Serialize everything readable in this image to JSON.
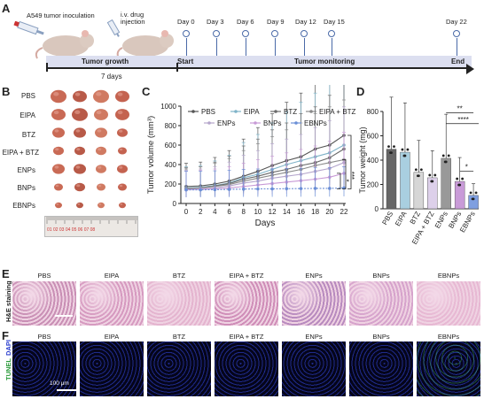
{
  "panels": {
    "A": "A",
    "B": "B",
    "C": "C",
    "D": "D",
    "E": "E",
    "F": "F"
  },
  "timeline": {
    "inoculation": "A549 tumor inoculation",
    "injection": "i.v. drug\ninjection",
    "days": [
      "Day 0",
      "Day 3",
      "Day 6",
      "Day 9",
      "Day 12",
      "Day 15",
      "Day 22"
    ],
    "growth": "Tumor growth",
    "start": "Start",
    "monitoring": "Tumor monitoring",
    "end": "End",
    "duration": "7 days"
  },
  "groups": [
    "PBS",
    "EIPA",
    "BTZ",
    "EIPA + BTZ",
    "ENPs",
    "BNPs",
    "EBNPs"
  ],
  "ruler_marks": "01  02  03  04  05  06  07  08",
  "stain_labels": {
    "he": "H&E staining",
    "tunel": "TUNEL",
    "dapi": "DAPI",
    "scale": "100 μm"
  },
  "chart_data": [
    {
      "type": "line",
      "xlabel": "Days",
      "ylabel": "Tumor volume (mm³)",
      "x": [
        0,
        2,
        4,
        6,
        8,
        10,
        12,
        14,
        16,
        18,
        20,
        22
      ],
      "xticks": [
        "0",
        "2",
        "4",
        "6",
        "8",
        "10",
        "12",
        "14",
        "16",
        "18",
        "20",
        "22"
      ],
      "ylim": [
        0,
        1000
      ],
      "yticks": [
        "0",
        "200",
        "400",
        "600",
        "800",
        "1000"
      ],
      "legend_rows": [
        [
          "PBS",
          "EIPA",
          "BTZ",
          "EIPA + BTZ"
        ],
        [
          "ENPs",
          "BNPs",
          "EBNPs"
        ]
      ],
      "series": [
        {
          "name": "PBS",
          "color": "#555555",
          "values": [
            175,
            180,
            200,
            230,
            280,
            330,
            390,
            440,
            480,
            560,
            600,
            700
          ]
        },
        {
          "name": "EIPA",
          "color": "#7fb3c8",
          "values": [
            160,
            165,
            185,
            210,
            265,
            300,
            350,
            400,
            440,
            480,
            520,
            600
          ]
        },
        {
          "name": "BTZ",
          "color": "#6a6a6a",
          "values": [
            155,
            160,
            180,
            205,
            250,
            280,
            320,
            350,
            390,
            420,
            470,
            560
          ]
        },
        {
          "name": "EIPA + BTZ",
          "color": "#8a8a8a",
          "values": [
            150,
            160,
            175,
            195,
            230,
            260,
            290,
            320,
            350,
            390,
            420,
            450
          ]
        },
        {
          "name": "ENPs",
          "color": "#b5a6cc",
          "values": [
            145,
            150,
            160,
            180,
            210,
            230,
            260,
            280,
            300,
            330,
            360,
            420
          ]
        },
        {
          "name": "BNPs",
          "color": "#c89ad6",
          "values": [
            140,
            145,
            150,
            160,
            175,
            190,
            205,
            220,
            235,
            250,
            270,
            310
          ]
        },
        {
          "name": "EBNPs",
          "color": "#6b8fd6",
          "values": [
            140,
            140,
            142,
            145,
            148,
            150,
            150,
            152,
            153,
            155,
            155,
            160
          ]
        }
      ],
      "significance": [
        "**",
        "***",
        "*"
      ]
    },
    {
      "type": "bar",
      "ylabel": "Tumor weight (mg)",
      "ylim": [
        0,
        800
      ],
      "yticks": [
        "0",
        "200",
        "400",
        "600",
        "800"
      ],
      "categories": [
        "PBS",
        "EIPA",
        "BTZ",
        "EIPA + BTZ",
        "ENPs",
        "BNPs",
        "EBNPs"
      ],
      "values": [
        490,
        465,
        300,
        255,
        415,
        225,
        110
      ],
      "colors": [
        "#666666",
        "#a9cfe0",
        "#d6d6d6",
        "#ddd0ea",
        "#999999",
        "#c99bd8",
        "#7f9fe0"
      ],
      "significance": [
        "**",
        "****",
        "*"
      ]
    }
  ]
}
